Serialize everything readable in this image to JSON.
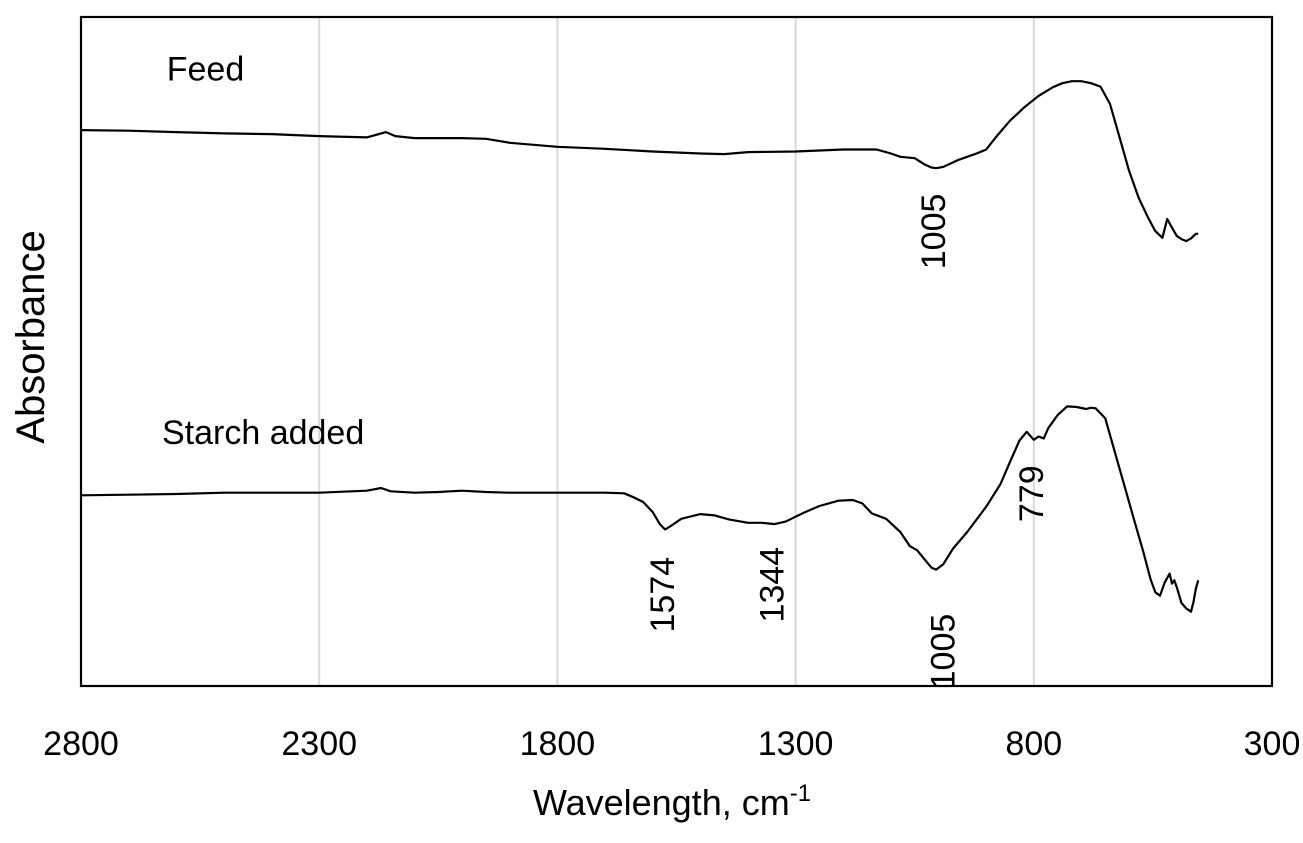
{
  "chart_data": {
    "type": "line",
    "title": "",
    "xlabel": "Wavelength, cm",
    "xlabel_sup": "-1",
    "ylabel": "Absorbance",
    "xlim": [
      2800,
      300
    ],
    "x_reversed": true,
    "x_ticks": [
      2800,
      2300,
      1800,
      1300,
      800,
      300
    ],
    "x_tick_labels": [
      "2800",
      "2300",
      "1800",
      "1300",
      "800",
      "300"
    ],
    "y_ticks_shown": false,
    "ylim": [
      0,
      100
    ],
    "grid": "vertical",
    "legend": "none",
    "series": [
      {
        "name": "Feed",
        "color": "#000000",
        "points": [
          [
            2800,
            83.1
          ],
          [
            2700,
            83.0
          ],
          [
            2600,
            82.8
          ],
          [
            2500,
            82.6
          ],
          [
            2400,
            82.5
          ],
          [
            2300,
            82.2
          ],
          [
            2200,
            82.0
          ],
          [
            2160,
            82.8
          ],
          [
            2140,
            82.2
          ],
          [
            2100,
            81.9
          ],
          [
            2000,
            81.9
          ],
          [
            1950,
            81.8
          ],
          [
            1900,
            81.2
          ],
          [
            1800,
            80.6
          ],
          [
            1700,
            80.3
          ],
          [
            1600,
            79.9
          ],
          [
            1500,
            79.6
          ],
          [
            1450,
            79.5
          ],
          [
            1400,
            79.8
          ],
          [
            1300,
            79.9
          ],
          [
            1200,
            80.2
          ],
          [
            1130,
            80.2
          ],
          [
            1100,
            79.6
          ],
          [
            1080,
            79.1
          ],
          [
            1050,
            78.9
          ],
          [
            1030,
            78.0
          ],
          [
            1015,
            77.5
          ],
          [
            1005,
            77.4
          ],
          [
            990,
            77.6
          ],
          [
            960,
            78.6
          ],
          [
            920,
            79.6
          ],
          [
            900,
            80.2
          ],
          [
            880,
            82.0
          ],
          [
            850,
            84.5
          ],
          [
            820,
            86.5
          ],
          [
            790,
            88.2
          ],
          [
            760,
            89.5
          ],
          [
            740,
            90.1
          ],
          [
            720,
            90.4
          ],
          [
            700,
            90.4
          ],
          [
            680,
            90.1
          ],
          [
            660,
            89.6
          ],
          [
            640,
            87.0
          ],
          [
            620,
            82.0
          ],
          [
            600,
            77.0
          ],
          [
            580,
            73.0
          ],
          [
            560,
            70.0
          ],
          [
            545,
            68.0
          ],
          [
            530,
            67.0
          ],
          [
            520,
            69.8
          ],
          [
            510,
            68.5
          ],
          [
            500,
            67.3
          ],
          [
            490,
            66.8
          ],
          [
            480,
            66.5
          ],
          [
            470,
            66.9
          ],
          [
            460,
            67.6
          ],
          [
            455,
            67.6
          ]
        ]
      },
      {
        "name": "Starch added",
        "color": "#000000",
        "points": [
          [
            2800,
            28.5
          ],
          [
            2700,
            28.6
          ],
          [
            2600,
            28.7
          ],
          [
            2500,
            28.9
          ],
          [
            2400,
            28.9
          ],
          [
            2300,
            28.9
          ],
          [
            2200,
            29.2
          ],
          [
            2170,
            29.6
          ],
          [
            2150,
            29.1
          ],
          [
            2100,
            28.9
          ],
          [
            2050,
            29.0
          ],
          [
            2000,
            29.2
          ],
          [
            1950,
            29.0
          ],
          [
            1900,
            28.9
          ],
          [
            1800,
            28.9
          ],
          [
            1700,
            28.9
          ],
          [
            1660,
            28.8
          ],
          [
            1640,
            28.2
          ],
          [
            1620,
            27.5
          ],
          [
            1600,
            26.0
          ],
          [
            1585,
            24.2
          ],
          [
            1574,
            23.4
          ],
          [
            1560,
            24.0
          ],
          [
            1540,
            25.0
          ],
          [
            1500,
            25.7
          ],
          [
            1470,
            25.5
          ],
          [
            1440,
            24.9
          ],
          [
            1400,
            24.4
          ],
          [
            1370,
            24.4
          ],
          [
            1344,
            24.2
          ],
          [
            1320,
            24.6
          ],
          [
            1300,
            25.3
          ],
          [
            1280,
            26.0
          ],
          [
            1250,
            26.9
          ],
          [
            1210,
            27.7
          ],
          [
            1180,
            27.8
          ],
          [
            1160,
            27.3
          ],
          [
            1140,
            25.8
          ],
          [
            1110,
            25.0
          ],
          [
            1080,
            23.0
          ],
          [
            1060,
            20.9
          ],
          [
            1045,
            20.3
          ],
          [
            1030,
            19.0
          ],
          [
            1015,
            17.7
          ],
          [
            1005,
            17.4
          ],
          [
            990,
            18.2
          ],
          [
            970,
            20.5
          ],
          [
            940,
            23.0
          ],
          [
            900,
            26.8
          ],
          [
            870,
            30.2
          ],
          [
            850,
            33.5
          ],
          [
            830,
            36.7
          ],
          [
            815,
            38.0
          ],
          [
            800,
            36.8
          ],
          [
            790,
            37.3
          ],
          [
            779,
            37.0
          ],
          [
            770,
            38.5
          ],
          [
            750,
            40.5
          ],
          [
            730,
            41.8
          ],
          [
            710,
            41.7
          ],
          [
            690,
            41.4
          ],
          [
            680,
            41.6
          ],
          [
            670,
            41.5
          ],
          [
            650,
            40.0
          ],
          [
            630,
            35.0
          ],
          [
            610,
            30.0
          ],
          [
            590,
            25.0
          ],
          [
            570,
            20.0
          ],
          [
            555,
            16.0
          ],
          [
            545,
            14.0
          ],
          [
            535,
            13.5
          ],
          [
            525,
            15.5
          ],
          [
            515,
            16.8
          ],
          [
            510,
            15.3
          ],
          [
            505,
            15.8
          ],
          [
            500,
            14.8
          ],
          [
            490,
            12.4
          ],
          [
            480,
            11.6
          ],
          [
            470,
            11.1
          ],
          [
            465,
            12.5
          ],
          [
            460,
            14.5
          ],
          [
            455,
            15.8
          ]
        ]
      }
    ],
    "series_labels": [
      {
        "text": "Feed",
        "x": 2620,
        "y": 90.5
      },
      {
        "text": "Starch added",
        "x": 2630,
        "y": 36.2
      }
    ],
    "annotations": [
      {
        "text": "1005",
        "x": 1005,
        "y": 62.3,
        "rotation": -90
      },
      {
        "text": "1574",
        "x": 1574,
        "y": 8.0,
        "rotation": -90
      },
      {
        "text": "1344",
        "x": 1344,
        "y": 9.5,
        "rotation": -90
      },
      {
        "text": "1005",
        "x": 985,
        "y": -0.5,
        "rotation": -90
      },
      {
        "text": "779",
        "x": 800,
        "y": 24.5,
        "rotation": -90
      }
    ]
  }
}
